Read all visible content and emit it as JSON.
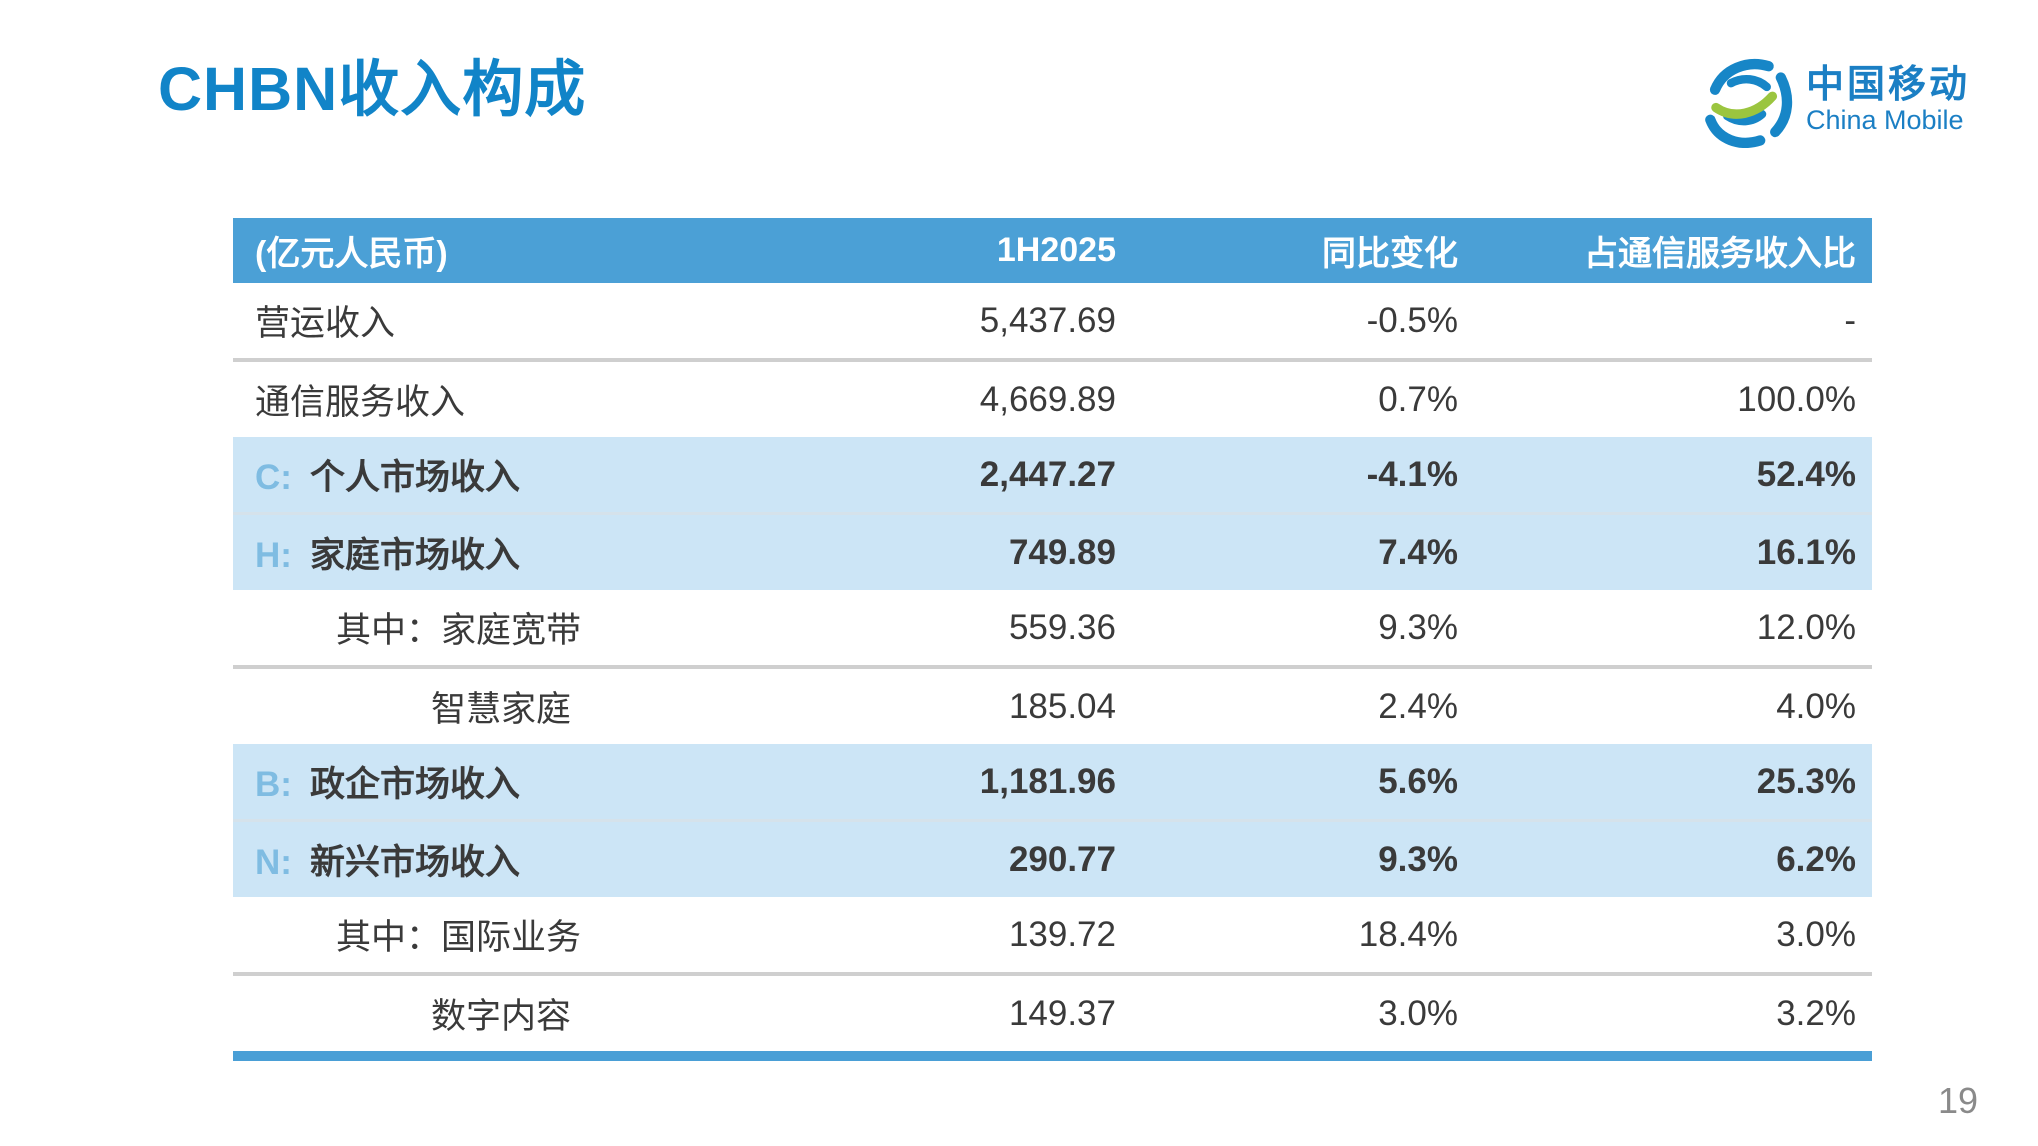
{
  "page": {
    "title": "CHBN收入构成",
    "page_number": "19"
  },
  "logo": {
    "zh": "中国移动",
    "en": "China Mobile"
  },
  "colors": {
    "title_blue": "#1184C8",
    "header_bg": "#4BA0D6",
    "header_text": "#FFFFFF",
    "highlight_row_bg": "#CCE5F6",
    "prefix_blue": "#7FBCE2",
    "body_text": "#3A3A3A",
    "divider_gray": "#CFCFCF",
    "bottom_border_blue": "#4A9FD6",
    "logo_blue": "#1B7FC4",
    "logo_green": "#9BC53F",
    "page_number_gray": "#8A8A8A"
  },
  "table": {
    "headers": [
      "(亿元人民币)",
      "1H2025",
      "同比变化",
      "占通信服务收入比"
    ],
    "rows": [
      {
        "prefix": "",
        "label": "营运收入",
        "indent": 1,
        "highlight": false,
        "divider": "none",
        "values": [
          "5,437.69",
          "-0.5%",
          "-"
        ]
      },
      {
        "prefix": "",
        "label": "通信服务收入",
        "indent": 1,
        "highlight": false,
        "divider": "gray",
        "values": [
          "4,669.89",
          "0.7%",
          "100.0%"
        ]
      },
      {
        "prefix": "C:",
        "label": "个人市场收入",
        "indent": 1,
        "highlight": true,
        "divider": "none",
        "values": [
          "2,447.27",
          "-4.1%",
          "52.4%"
        ]
      },
      {
        "prefix": "H:",
        "label": "家庭市场收入",
        "indent": 1,
        "highlight": true,
        "divider": "light",
        "values": [
          "749.89",
          "7.4%",
          "16.1%"
        ]
      },
      {
        "prefix": "",
        "label": "其中：家庭宽带",
        "indent": 2,
        "highlight": false,
        "divider": "none",
        "values": [
          "559.36",
          "9.3%",
          "12.0%"
        ]
      },
      {
        "prefix": "",
        "label": "智慧家庭",
        "indent": 3,
        "highlight": false,
        "divider": "gray",
        "values": [
          "185.04",
          "2.4%",
          "4.0%"
        ]
      },
      {
        "prefix": "B:",
        "label": "政企市场收入",
        "indent": 1,
        "highlight": true,
        "divider": "none",
        "values": [
          "1,181.96",
          "5.6%",
          "25.3%"
        ]
      },
      {
        "prefix": "N:",
        "label": "新兴市场收入",
        "indent": 1,
        "highlight": true,
        "divider": "light",
        "values": [
          "290.77",
          "9.3%",
          "6.2%"
        ]
      },
      {
        "prefix": "",
        "label": "其中：国际业务",
        "indent": 2,
        "highlight": false,
        "divider": "none",
        "values": [
          "139.72",
          "18.4%",
          "3.0%"
        ]
      },
      {
        "prefix": "",
        "label": "数字内容",
        "indent": 3,
        "highlight": false,
        "divider": "gray",
        "values": [
          "149.37",
          "3.0%",
          "3.2%"
        ]
      }
    ]
  }
}
